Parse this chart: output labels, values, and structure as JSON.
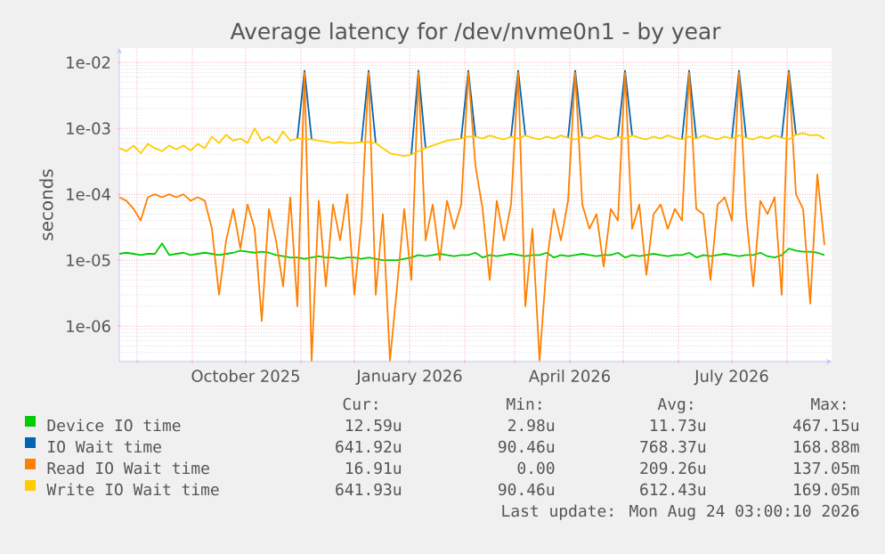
{
  "chart_data": {
    "type": "line",
    "title": "Average latency for /dev/nvme0n1 - by year",
    "ylabel": "seconds",
    "log": "y",
    "grid": true,
    "legend": "bottom",
    "xlim": [
      "2025-07-22",
      "2026-08-26"
    ],
    "ylim": [
      2.9e-07,
      0.0165
    ],
    "yticks": [
      {
        "value": 1e-06,
        "label": "1e-06"
      },
      {
        "value": 1e-05,
        "label": "1e-05"
      },
      {
        "value": 0.0001,
        "label": "1e-04"
      },
      {
        "value": 0.001,
        "label": "1e-03"
      },
      {
        "value": 0.01,
        "label": "1e-02"
      }
    ],
    "xticks": [
      {
        "value": "2025-08-01",
        "label": null
      },
      {
        "value": "2025-09-01",
        "label": null
      },
      {
        "value": "2025-10-01",
        "label": "October 2025"
      },
      {
        "value": "2025-11-01",
        "label": null
      },
      {
        "value": "2025-12-01",
        "label": null
      },
      {
        "value": "2026-01-01",
        "label": "January 2026"
      },
      {
        "value": "2026-02-01",
        "label": null
      },
      {
        "value": "2026-03-01",
        "label": null
      },
      {
        "value": "2026-04-01",
        "label": "April 2026"
      },
      {
        "value": "2026-05-01",
        "label": null
      },
      {
        "value": "2026-06-01",
        "label": null
      },
      {
        "value": "2026-07-01",
        "label": "July 2026"
      },
      {
        "value": "2026-08-01",
        "label": null
      }
    ],
    "x": [
      "2025-07-22",
      "2025-07-26",
      "2025-07-30",
      "2025-08-03",
      "2025-08-07",
      "2025-08-11",
      "2025-08-15",
      "2025-08-19",
      "2025-08-23",
      "2025-08-27",
      "2025-08-31",
      "2025-09-04",
      "2025-09-08",
      "2025-09-12",
      "2025-09-16",
      "2025-09-20",
      "2025-09-24",
      "2025-09-28",
      "2025-10-02",
      "2025-10-06",
      "2025-10-10",
      "2025-10-14",
      "2025-10-18",
      "2025-10-22",
      "2025-10-26",
      "2025-10-30",
      "2025-11-03",
      "2025-11-07",
      "2025-11-11",
      "2025-11-15",
      "2025-11-19",
      "2025-11-23",
      "2025-11-27",
      "2025-12-01",
      "2025-12-05",
      "2025-12-09",
      "2025-12-13",
      "2025-12-17",
      "2025-12-21",
      "2025-12-25",
      "2025-12-29",
      "2026-01-02",
      "2026-01-06",
      "2026-01-10",
      "2026-01-14",
      "2026-01-18",
      "2026-01-22",
      "2026-01-26",
      "2026-01-30",
      "2026-02-03",
      "2026-02-07",
      "2026-02-11",
      "2026-02-15",
      "2026-02-19",
      "2026-02-23",
      "2026-02-27",
      "2026-03-03",
      "2026-03-07",
      "2026-03-11",
      "2026-03-15",
      "2026-03-19",
      "2026-03-23",
      "2026-03-27",
      "2026-03-31",
      "2026-04-04",
      "2026-04-08",
      "2026-04-12",
      "2026-04-16",
      "2026-04-20",
      "2026-04-24",
      "2026-04-28",
      "2026-05-02",
      "2026-05-06",
      "2026-05-10",
      "2026-05-14",
      "2026-05-18",
      "2026-05-22",
      "2026-05-26",
      "2026-05-30",
      "2026-06-03",
      "2026-06-07",
      "2026-06-11",
      "2026-06-15",
      "2026-06-19",
      "2026-06-23",
      "2026-06-27",
      "2026-07-01",
      "2026-07-05",
      "2026-07-09",
      "2026-07-13",
      "2026-07-17",
      "2026-07-21",
      "2026-07-25",
      "2026-07-29",
      "2026-08-02",
      "2026-08-06",
      "2026-08-10",
      "2026-08-14",
      "2026-08-18",
      "2026-08-22"
    ],
    "series": [
      {
        "name": "Device IO time",
        "color": "#00cc00",
        "values": [
          1.25e-05,
          1.3e-05,
          1.25e-05,
          1.2e-05,
          1.25e-05,
          1.25e-05,
          1.8e-05,
          1.2e-05,
          1.25e-05,
          1.3e-05,
          1.2e-05,
          1.25e-05,
          1.3e-05,
          1.25e-05,
          1.2e-05,
          1.25e-05,
          1.3e-05,
          1.4e-05,
          1.35e-05,
          1.3e-05,
          1.35e-05,
          1.3e-05,
          1.2e-05,
          1.15e-05,
          1.1e-05,
          1.1e-05,
          1.05e-05,
          1.1e-05,
          1.15e-05,
          1.1e-05,
          1.1e-05,
          1.05e-05,
          1.1e-05,
          1.1e-05,
          1.05e-05,
          1.1e-05,
          1.05e-05,
          1e-05,
          1e-05,
          1e-05,
          1.05e-05,
          1.1e-05,
          1.2e-05,
          1.15e-05,
          1.2e-05,
          1.25e-05,
          1.2e-05,
          1.15e-05,
          1.2e-05,
          1.2e-05,
          1.3e-05,
          1.1e-05,
          1.2e-05,
          1.15e-05,
          1.2e-05,
          1.25e-05,
          1.2e-05,
          1.15e-05,
          1.2e-05,
          1.2e-05,
          1.3e-05,
          1.1e-05,
          1.2e-05,
          1.15e-05,
          1.2e-05,
          1.25e-05,
          1.2e-05,
          1.15e-05,
          1.2e-05,
          1.2e-05,
          1.3e-05,
          1.1e-05,
          1.2e-05,
          1.15e-05,
          1.2e-05,
          1.25e-05,
          1.2e-05,
          1.15e-05,
          1.2e-05,
          1.2e-05,
          1.3e-05,
          1.1e-05,
          1.2e-05,
          1.15e-05,
          1.2e-05,
          1.25e-05,
          1.2e-05,
          1.15e-05,
          1.2e-05,
          1.2e-05,
          1.3e-05,
          1.15e-05,
          1.1e-05,
          1.2e-05,
          1.5e-05,
          1.4e-05,
          1.35e-05,
          1.35e-05,
          1.3e-05,
          1.2e-05
        ]
      },
      {
        "name": "IO Wait time",
        "color": "#0066b3",
        "values": [
          null,
          null,
          null,
          null,
          null,
          null,
          null,
          null,
          null,
          null,
          null,
          null,
          null,
          null,
          null,
          null,
          null,
          null,
          null,
          null,
          null,
          null,
          null,
          null,
          null,
          0.0007,
          0.0075,
          0.00068,
          null,
          null,
          null,
          null,
          null,
          null,
          0.00062,
          0.0075,
          0.0006,
          null,
          null,
          null,
          null,
          0.0004,
          0.0075,
          0.0005,
          null,
          null,
          null,
          null,
          0.0007,
          0.0075,
          0.00075,
          null,
          null,
          null,
          null,
          0.00075,
          0.0075,
          0.00078,
          null,
          null,
          null,
          null,
          null,
          0.00072,
          0.0075,
          0.00075,
          null,
          null,
          null,
          null,
          0.00075,
          0.0075,
          0.00078,
          null,
          null,
          null,
          null,
          null,
          null,
          0.00068,
          0.0075,
          0.0007,
          null,
          null,
          null,
          null,
          0.0007,
          0.0075,
          0.00072,
          null,
          null,
          null,
          null,
          0.00072,
          0.0075,
          0.0008,
          null,
          null,
          null,
          null
        ]
      },
      {
        "name": "Read IO Wait time",
        "color": "#ff8000",
        "values": [
          9e-05,
          8e-05,
          6e-05,
          4e-05,
          9e-05,
          0.0001,
          9e-05,
          0.0001,
          9e-05,
          0.0001,
          8e-05,
          9e-05,
          8e-05,
          3e-05,
          3e-06,
          2e-05,
          6e-05,
          1.5e-05,
          7e-05,
          3e-05,
          1.2e-06,
          6e-05,
          2e-05,
          4e-06,
          9e-05,
          2e-06,
          0.007,
          3e-07,
          8e-05,
          4e-06,
          7e-05,
          2e-05,
          0.0001,
          3e-06,
          4e-05,
          0.007,
          3e-06,
          5e-05,
          3e-07,
          4e-06,
          6e-05,
          5e-06,
          0.007,
          2e-05,
          7e-05,
          1e-05,
          8e-05,
          3e-05,
          7e-05,
          0.007,
          0.00027,
          6e-05,
          5e-06,
          8e-05,
          2e-05,
          7e-05,
          0.007,
          2e-06,
          3e-05,
          3e-07,
          9e-06,
          6e-05,
          2e-05,
          8e-05,
          0.007,
          7e-05,
          3e-05,
          5e-05,
          8e-06,
          6e-05,
          4e-05,
          0.007,
          3e-05,
          7e-05,
          6e-06,
          5e-05,
          7e-05,
          3e-05,
          6e-05,
          4e-05,
          0.007,
          6e-05,
          5e-05,
          5e-06,
          7e-05,
          9e-05,
          4e-05,
          0.007,
          5e-05,
          4e-06,
          8e-05,
          5e-05,
          9e-05,
          3e-06,
          0.007,
          0.0001,
          6e-05,
          2.2e-06,
          0.0002,
          1.7e-05
        ]
      },
      {
        "name": "Write IO Wait time",
        "color": "#ffcc00",
        "values": [
          0.0005,
          0.00045,
          0.00055,
          0.00042,
          0.00058,
          0.0005,
          0.00045,
          0.00055,
          0.00048,
          0.00055,
          0.00046,
          0.00058,
          0.0005,
          0.00075,
          0.0006,
          0.0008,
          0.00065,
          0.0007,
          0.0006,
          0.001,
          0.00065,
          0.00075,
          0.0006,
          0.0009,
          0.00065,
          0.0007,
          0.0007,
          0.00068,
          0.00065,
          0.00063,
          0.0006,
          0.00062,
          0.0006,
          0.0006,
          0.00062,
          0.00062,
          0.0006,
          0.0005,
          0.00042,
          0.0004,
          0.00038,
          0.0004,
          0.00045,
          0.0005,
          0.00055,
          0.0006,
          0.00065,
          0.00068,
          0.0007,
          0.00075,
          0.00075,
          0.0007,
          0.00078,
          0.00072,
          0.00068,
          0.00075,
          0.0007,
          0.00078,
          0.00072,
          0.00068,
          0.00075,
          0.0007,
          0.00078,
          0.00072,
          0.00068,
          0.00075,
          0.0007,
          0.00078,
          0.00072,
          0.00068,
          0.00075,
          0.0007,
          0.00078,
          0.00072,
          0.00068,
          0.00075,
          0.0007,
          0.00078,
          0.00072,
          0.00068,
          0.00075,
          0.0007,
          0.00078,
          0.00072,
          0.00068,
          0.00075,
          0.0007,
          0.00078,
          0.00072,
          0.00068,
          0.00075,
          0.0007,
          0.00078,
          0.00072,
          0.00068,
          0.0008,
          0.00085,
          0.00078,
          0.0008,
          0.0007
        ]
      }
    ],
    "annotations": [
      "Cur:",
      "Min:",
      "Avg:",
      "Max:",
      "12.59u",
      "2.98u",
      "11.73u",
      "467.15u",
      "641.92u",
      "90.46u",
      "768.37u",
      "168.88m",
      "16.91u",
      "0.00",
      "209.26u",
      "137.05m",
      "641.93u",
      "90.46u",
      "612.43u",
      "169.05m",
      "Last update: Mon Aug 24 03:00:10 2026"
    ]
  }
}
